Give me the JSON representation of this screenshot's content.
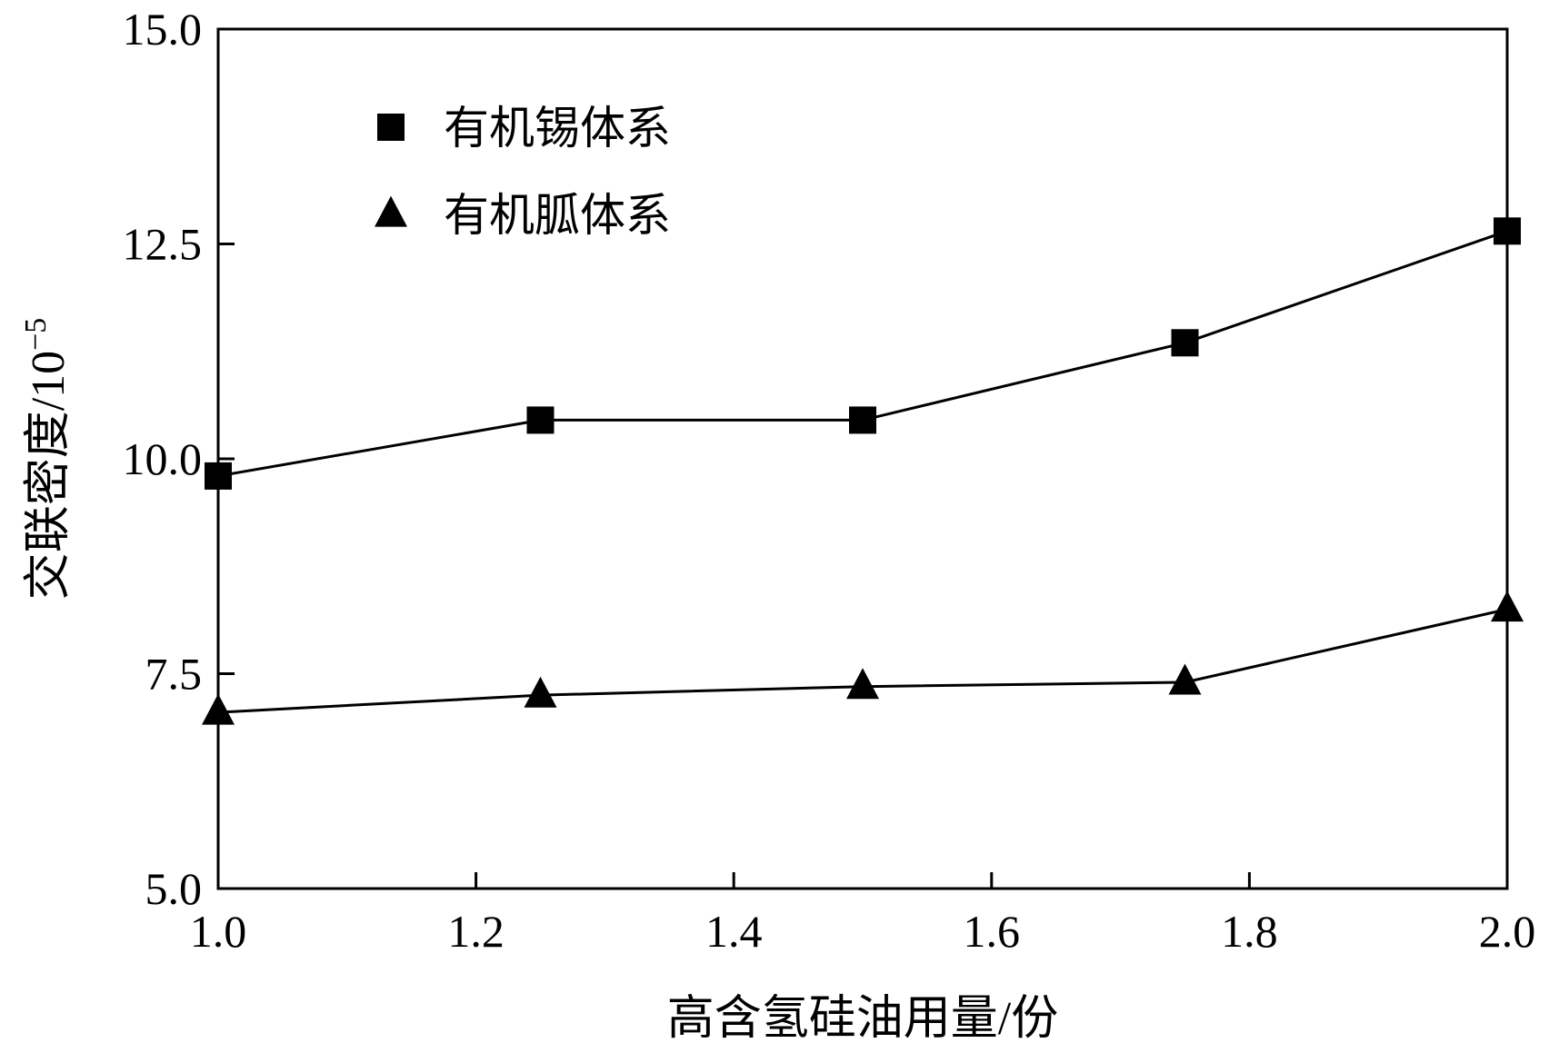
{
  "chart_data": {
    "type": "line",
    "xlabel": "高含氢硅油用量/份",
    "ylabel": "交联密度/10",
    "ylabel_superscript": "−5",
    "xlim": [
      1.0,
      2.0
    ],
    "ylim": [
      5.0,
      15.0
    ],
    "x_ticks": [
      "1.0",
      "1.2",
      "1.4",
      "1.6",
      "1.8",
      "2.0"
    ],
    "y_ticks": [
      "5.0",
      "7.5",
      "10.0",
      "12.5",
      "15.0"
    ],
    "grid": false,
    "legend_position": "top-left",
    "x": [
      1.0,
      1.25,
      1.5,
      1.75,
      2.0
    ],
    "series": [
      {
        "name": "有机锡体系",
        "marker": "square",
        "color": "#000000",
        "values": [
          9.8,
          10.45,
          10.45,
          11.35,
          12.65
        ]
      },
      {
        "name": "有机胍体系",
        "marker": "triangle",
        "color": "#000000",
        "values": [
          7.05,
          7.25,
          7.35,
          7.4,
          8.25
        ]
      }
    ]
  }
}
